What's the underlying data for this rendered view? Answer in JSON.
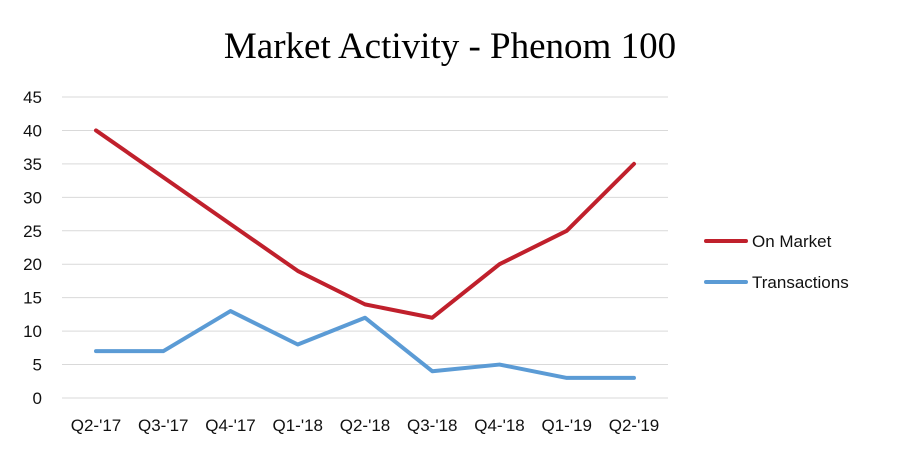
{
  "chart_data": {
    "type": "line",
    "title": "Market Activity - Phenom 100",
    "xlabel": "",
    "ylabel": "",
    "categories": [
      "Q2-'17",
      "Q3-'17",
      "Q4-'17",
      "Q1-'18",
      "Q2-'18",
      "Q3-'18",
      "Q4-'18",
      "Q1-'19",
      "Q2-'19"
    ],
    "ylim": [
      0,
      45
    ],
    "yticks": [
      0,
      5,
      10,
      15,
      20,
      25,
      30,
      35,
      40,
      45
    ],
    "grid": true,
    "legend_position": "right",
    "series": [
      {
        "name": "On Market",
        "color": "#c0202c",
        "values": [
          40,
          33,
          26,
          19,
          14,
          12,
          20,
          25,
          35
        ]
      },
      {
        "name": "Transactions",
        "color": "#5b9bd5",
        "values": [
          7,
          7,
          13,
          8,
          12,
          4,
          5,
          3,
          3
        ]
      }
    ]
  }
}
